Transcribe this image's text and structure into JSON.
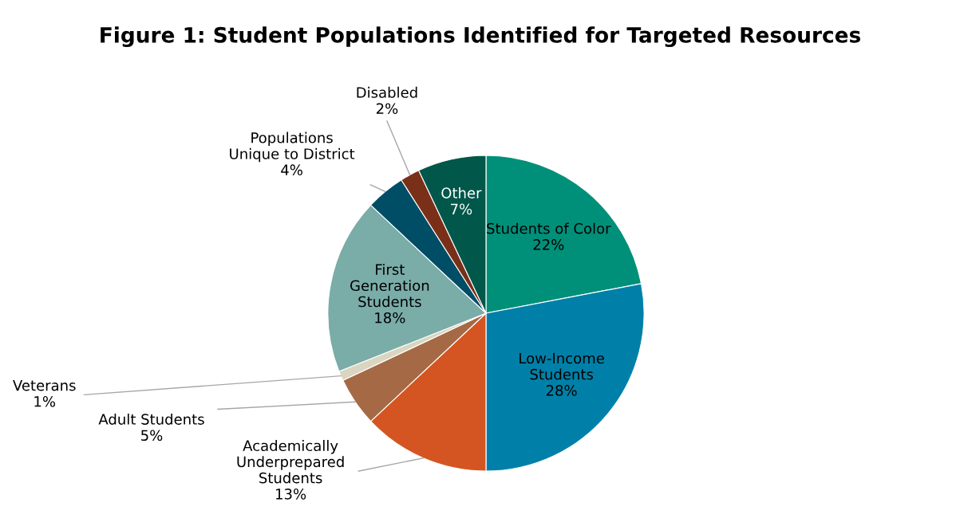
{
  "chart_data": {
    "type": "pie",
    "title": "Figure 1: Student Populations Identified for Targeted Resources",
    "categories": [
      "Students of Color",
      "Low-Income\nStudents",
      "Academically\nUnderprepared\nStudents",
      "Adult Students",
      "Veterans",
      "First\nGeneration\nStudents",
      "Populations\nUnique to District",
      "Disabled",
      "Other"
    ],
    "values": [
      22,
      28,
      13,
      5,
      1,
      18,
      4,
      2,
      7
    ],
    "colors": [
      "#00907a",
      "#0080a8",
      "#d45522",
      "#a56a45",
      "#d9d5c0",
      "#7aaca8",
      "#004d66",
      "#7a3018",
      "#00574a"
    ],
    "value_labels": [
      "22%",
      "28%",
      "13%",
      "5%",
      "1%",
      "18%",
      "4%",
      "2%",
      "7%"
    ],
    "data_labels": true
  }
}
